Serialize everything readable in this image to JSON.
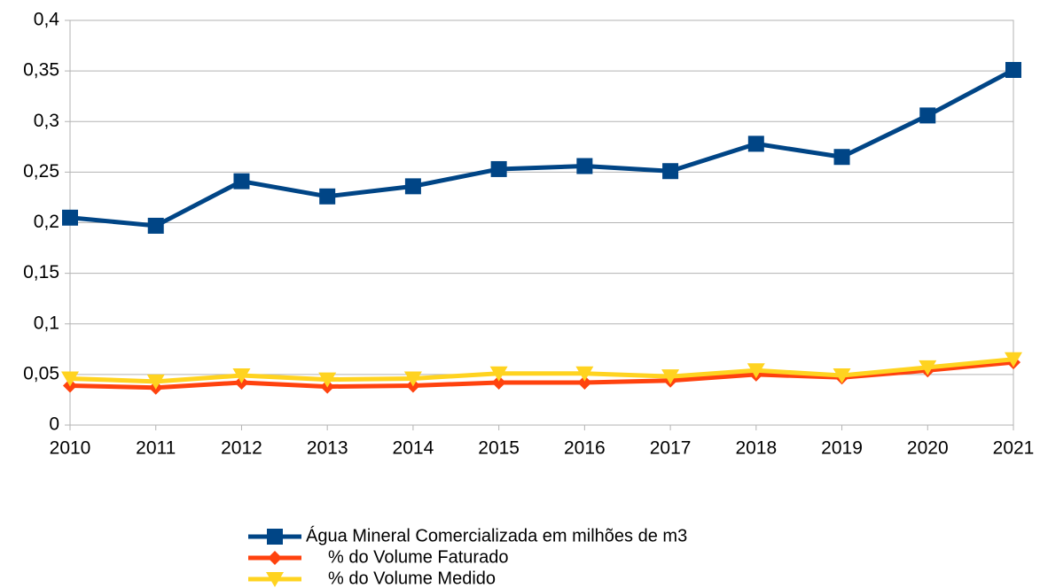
{
  "chart_data": {
    "type": "line",
    "x": [
      2010,
      2011,
      2012,
      2013,
      2014,
      2015,
      2016,
      2017,
      2018,
      2019,
      2020,
      2021
    ],
    "xlim": [
      2010,
      2021
    ],
    "xticks": [
      2010,
      2011,
      2012,
      2013,
      2014,
      2015,
      2016,
      2017,
      2018,
      2019,
      2020,
      2021
    ],
    "ylim": [
      0,
      0.4
    ],
    "yticks": [
      0,
      {
        "value": 0.05,
        "label": "0,05"
      },
      {
        "value": 0.1,
        "label": "0,1"
      },
      {
        "value": 0.15,
        "label": "0,15"
      },
      {
        "value": 0.2,
        "label": "0,2"
      },
      {
        "value": 0.25,
        "label": "0,25"
      },
      {
        "value": 0.3,
        "label": "0,3"
      },
      {
        "value": 0.35,
        "label": "0,35"
      },
      {
        "value": 0.4,
        "label": "0,4"
      }
    ],
    "grid": true,
    "legend": "bottom",
    "series": [
      {
        "name": "Água Mineral Comercializada em milhões de m3",
        "color": "#004586",
        "marker": "square",
        "values": [
          0.205,
          0.197,
          0.241,
          0.226,
          0.236,
          0.253,
          0.256,
          0.251,
          0.278,
          0.265,
          0.306,
          0.351
        ]
      },
      {
        "name": "% do Volume Faturado",
        "color": "#ff420e",
        "marker": "diamond",
        "values": [
          0.039,
          0.037,
          0.042,
          0.038,
          0.039,
          0.042,
          0.042,
          0.044,
          0.05,
          0.047,
          0.054,
          0.062
        ]
      },
      {
        "name": "% do Volume Medido",
        "color": "#ffd320",
        "marker": "triangle-down",
        "values": [
          0.046,
          0.043,
          0.049,
          0.045,
          0.046,
          0.051,
          0.051,
          0.048,
          0.054,
          0.049,
          0.057,
          0.065
        ]
      }
    ]
  }
}
